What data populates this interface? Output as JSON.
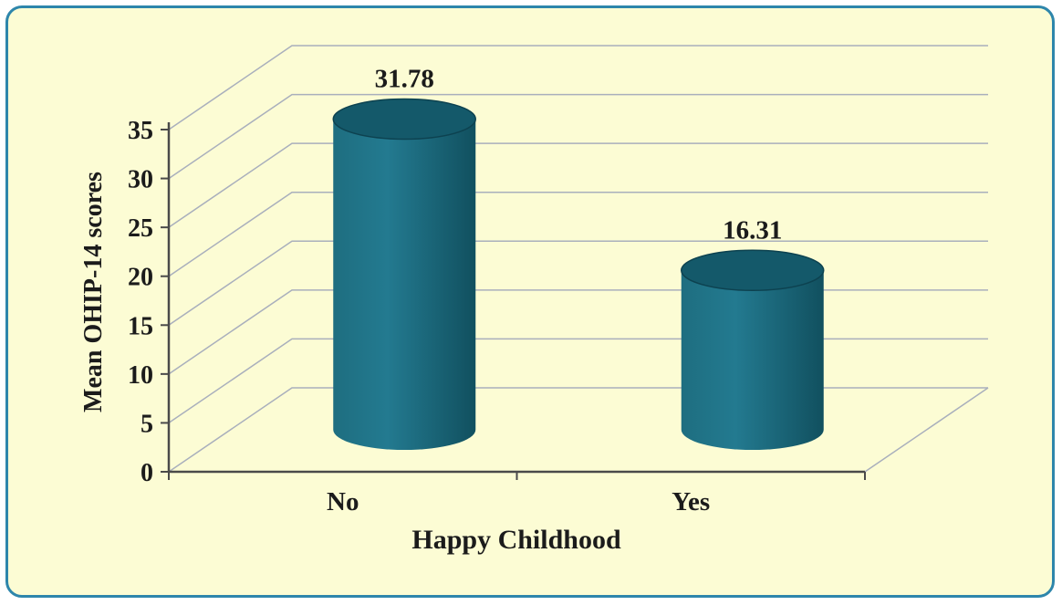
{
  "figure": {
    "background": "#fcfcd4",
    "border_color": "#2e86ab"
  },
  "chart_data": {
    "type": "bar",
    "subtype": "3d-cylinder-vertical",
    "title": "",
    "categories": [
      "No",
      "Yes"
    ],
    "values": [
      31.78,
      16.31
    ],
    "value_labels": [
      "31.78",
      "16.31"
    ],
    "xlabel": "Happy Childhood",
    "ylabel": "Mean OHIP-14 scores",
    "ylim": [
      0,
      35
    ],
    "ytick_step": 5,
    "yticks": [
      0,
      5,
      10,
      15,
      20,
      25,
      30,
      35
    ],
    "grid": true,
    "legend": "none",
    "colors": {
      "bar_gradient": [
        "#1e6e80",
        "#237a90",
        "#11505f"
      ],
      "bar_top": "#14596a",
      "bar_top_stroke": "#0d4250",
      "gridline": "#a9afbc",
      "axis": "#4a4a4a",
      "text": "#1b1b1b"
    }
  }
}
